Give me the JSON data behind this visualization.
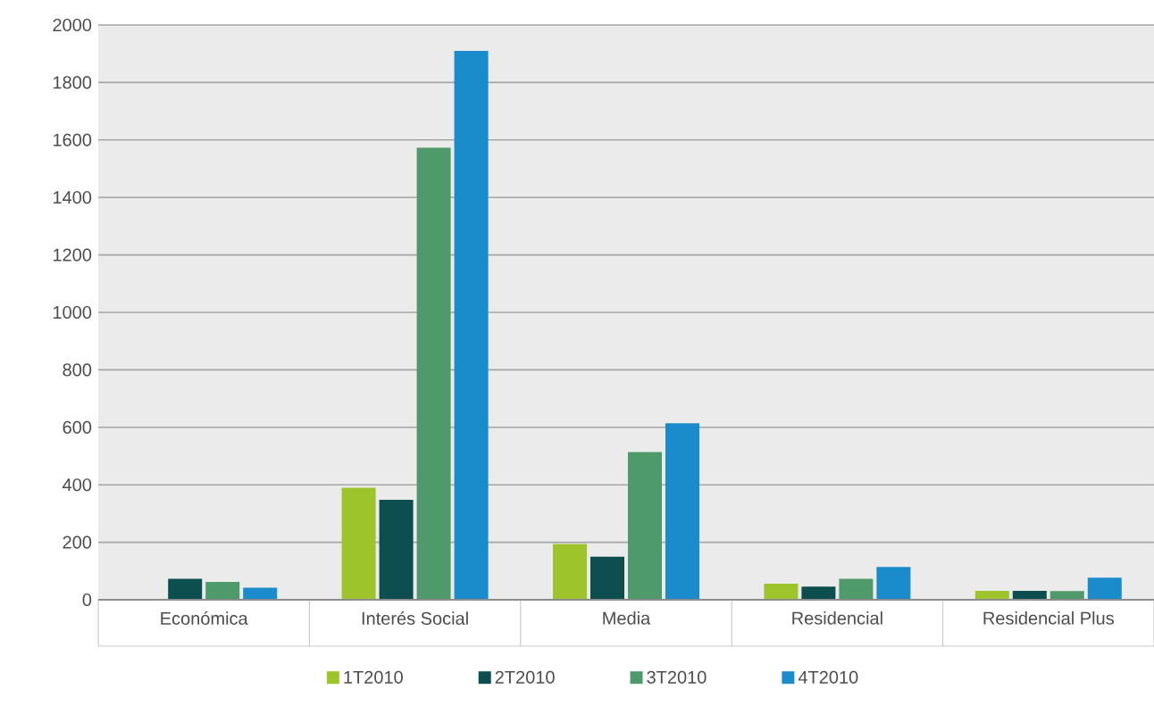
{
  "chart_data": {
    "type": "bar",
    "categories": [
      "Económica",
      "Interés Social",
      "Media",
      "Residencial",
      "Residencial Plus"
    ],
    "series": [
      {
        "name": "1T2010",
        "color": "#9dc42a",
        "values": [
          null,
          390,
          194,
          56,
          31
        ]
      },
      {
        "name": "2T2010",
        "color": "#0d4f4f",
        "values": [
          73,
          348,
          150,
          46,
          31
        ]
      },
      {
        "name": "3T2010",
        "color": "#4f9a6a",
        "values": [
          62,
          1573,
          514,
          73,
          30
        ]
      },
      {
        "name": "4T2010",
        "color": "#1a8ccc",
        "values": [
          42,
          1910,
          614,
          114,
          77
        ]
      }
    ],
    "ylim": [
      0,
      2000
    ],
    "yticks": [
      0,
      200,
      400,
      600,
      800,
      1000,
      1200,
      1400,
      1600,
      1800,
      2000
    ],
    "grid": "y",
    "legend": "bottom"
  }
}
